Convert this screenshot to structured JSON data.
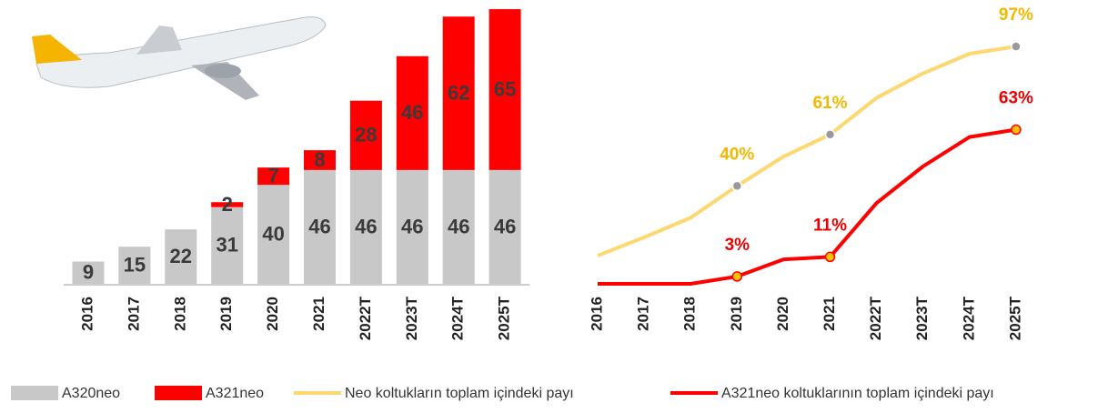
{
  "chart_data": [
    {
      "type": "bar",
      "stacked": true,
      "categories": [
        "2016",
        "2017",
        "2018",
        "2019",
        "2020",
        "2021",
        "2022T",
        "2023T",
        "2024T",
        "2025T"
      ],
      "series": [
        {
          "name": "A320neo",
          "color": "#c8c8c8",
          "values": [
            9,
            15,
            22,
            31,
            40,
            46,
            46,
            46,
            46,
            46
          ]
        },
        {
          "name": "A321neo",
          "color": "#ff0000",
          "values": [
            null,
            null,
            null,
            2,
            7,
            8,
            28,
            46,
            62,
            65
          ]
        }
      ]
    },
    {
      "type": "line",
      "categories": [
        "2016",
        "2017",
        "2018",
        "2019",
        "2020",
        "2021",
        "2022T",
        "2023T",
        "2024T",
        "2025T"
      ],
      "series": [
        {
          "name": "Neo koltukların toplam içindeki payı",
          "color": "#fdd870",
          "label_color": "#f5b800",
          "values": [
            11.5,
            19,
            27,
            40,
            52,
            61,
            76,
            86,
            94,
            97
          ],
          "value_labels": [
            null,
            null,
            null,
            "40%",
            null,
            "61%",
            null,
            null,
            null,
            "97%"
          ]
        },
        {
          "name": "A321neo koltuklarının toplam içindeki payı",
          "color": "#ff0000",
          "label_color": "#ee0000",
          "values": [
            0,
            0,
            0,
            3,
            10,
            11,
            33,
            48,
            60,
            63
          ],
          "value_labels": [
            null,
            null,
            null,
            "3%",
            null,
            "11%",
            null,
            null,
            null,
            "63%"
          ]
        }
      ]
    }
  ]
}
